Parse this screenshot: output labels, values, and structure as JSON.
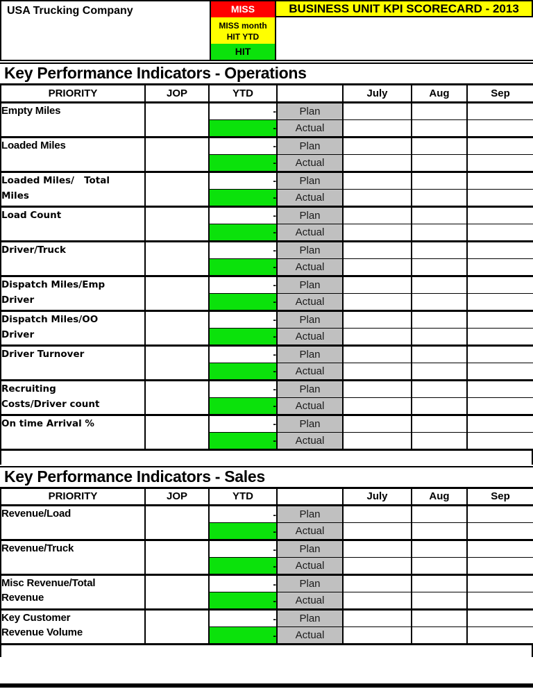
{
  "app": {
    "company_name": "USA Trucking Company",
    "banner_title": "BUSINESS UNIT KPI SCORECARD - 2013"
  },
  "legend": {
    "miss": "MISS",
    "miss_month": "MISS month",
    "hit_ytd": "HIT YTD",
    "hit": "HIT"
  },
  "table": {
    "columns": {
      "priority": "PRIORITY",
      "jop": "JOP",
      "ytd": "YTD",
      "blank": "",
      "months": [
        "July",
        "Aug",
        "Sep"
      ]
    },
    "plan_label": "Plan",
    "actual_label": "Actual",
    "ytd_plan_value": "-",
    "ytd_actual_value": "-"
  },
  "sections": [
    {
      "title": "Key Performance Indicators - Operations",
      "kpis": [
        {
          "label": "Empty Miles"
        },
        {
          "label": "Loaded Miles"
        },
        {
          "label": "Loaded Miles/   Total\nMiles",
          "wide": true
        },
        {
          "label": "Load Count",
          "wide": true
        },
        {
          "label": "Driver/Truck",
          "wide": true
        },
        {
          "label": "Dispatch Miles/Emp\nDriver",
          "wide": true
        },
        {
          "label": "Dispatch Miles/OO\nDriver",
          "wide": true
        },
        {
          "label": "Driver Turnover",
          "wide": true
        },
        {
          "label": "Recruiting\nCosts/Driver count",
          "wide": true
        },
        {
          "label": "On time Arrival %",
          "wide": true
        }
      ]
    },
    {
      "title": "Key Performance Indicators - Sales",
      "kpis": [
        {
          "label": "Revenue/Load"
        },
        {
          "label": "Revenue/Truck"
        },
        {
          "label": "Misc Revenue/Total\nRevenue"
        },
        {
          "label": "Key Customer\nRevenue Volume"
        }
      ]
    }
  ],
  "colors": {
    "miss_red": "#ff0000",
    "legend_yellow": "#ffff00",
    "hit_green": "#0be20b",
    "label_gray": "#c0c0c0"
  }
}
